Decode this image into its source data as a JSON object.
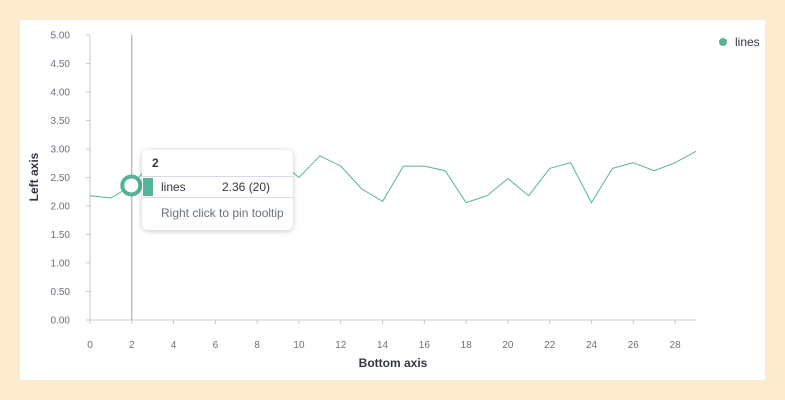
{
  "chart_data": {
    "type": "line",
    "xlabel": "Bottom axis",
    "ylabel": "Left axis",
    "xlim": [
      0,
      29
    ],
    "ylim": [
      0,
      5
    ],
    "x_ticks": [
      "0",
      "2",
      "4",
      "6",
      "8",
      "10",
      "12",
      "14",
      "16",
      "18",
      "20",
      "22",
      "24",
      "26",
      "28"
    ],
    "y_ticks": [
      "0.00",
      "0.50",
      "1.00",
      "1.50",
      "2.00",
      "2.50",
      "3.00",
      "3.50",
      "4.00",
      "4.50",
      "5.00"
    ],
    "legend_position": "top-right",
    "grid": false,
    "series": [
      {
        "name": "lines",
        "color": "#54b399",
        "x": [
          0,
          1,
          2,
          3,
          4,
          5,
          6,
          7,
          8,
          9,
          10,
          11,
          12,
          13,
          14,
          15,
          16,
          17,
          18,
          19,
          20,
          21,
          22,
          23,
          24,
          25,
          26,
          27,
          28,
          29
        ],
        "values": [
          2.18,
          2.14,
          2.36,
          2.78,
          2.62,
          2.42,
          2.58,
          2.7,
          2.66,
          2.8,
          2.5,
          2.88,
          2.7,
          2.3,
          2.08,
          2.7,
          2.7,
          2.62,
          2.06,
          2.18,
          2.48,
          2.18,
          2.66,
          2.76,
          2.06,
          2.66,
          2.76,
          2.62,
          2.76,
          2.96
        ]
      }
    ]
  },
  "tooltip": {
    "header": "2",
    "series_name": "lines",
    "value_text": "2.36  (20)",
    "footer": "Right click to pin tooltip",
    "highlight_x": 2,
    "highlight_y": 2.36
  }
}
